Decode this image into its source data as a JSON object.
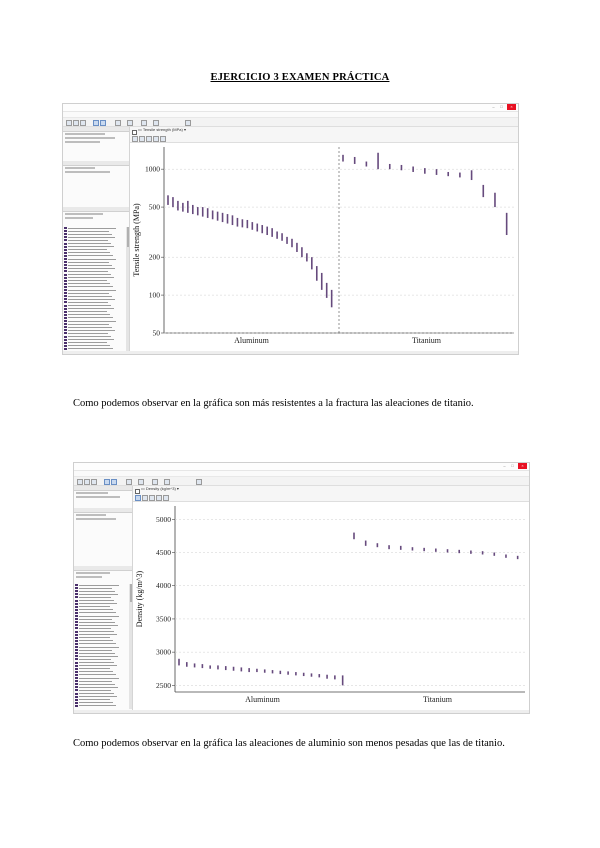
{
  "document": {
    "title": "EJERCICIO 3 EXAMEN PRÁCTICA",
    "paragraph_1": "Como podemos observar en la gráfica son más resistentes a la fractura las aleaciones de titanio.",
    "paragraph_2": "Como podemos observar en la gráfica las aleaciones de aluminio son menos pesadas que las de titanio."
  },
  "colors": {
    "mark": "#4b2a66",
    "window_close": "#e81123",
    "grid": "#cfcfcf"
  },
  "chart_data": [
    {
      "type": "scatter",
      "xlabel": "",
      "ylabel": "Tensile strength (MPa)",
      "y_scale": "log",
      "ylim": [
        50,
        1500
      ],
      "yticks": [
        "50",
        "100",
        "200",
        "500",
        "1000"
      ],
      "categories": [
        "Aluminum",
        "Titanium"
      ],
      "series": [
        {
          "category": "Aluminum",
          "ranges": [
            [
              520,
              620
            ],
            [
              500,
              600
            ],
            [
              470,
              560
            ],
            [
              460,
              540
            ],
            [
              450,
              560
            ],
            [
              440,
              520
            ],
            [
              430,
              500
            ],
            [
              420,
              500
            ],
            [
              410,
              490
            ],
            [
              400,
              470
            ],
            [
              390,
              460
            ],
            [
              380,
              450
            ],
            [
              370,
              440
            ],
            [
              360,
              430
            ],
            [
              350,
              410
            ],
            [
              345,
              400
            ],
            [
              340,
              395
            ],
            [
              330,
              380
            ],
            [
              320,
              370
            ],
            [
              310,
              360
            ],
            [
              300,
              350
            ],
            [
              290,
              340
            ],
            [
              280,
              320
            ],
            [
              270,
              310
            ],
            [
              255,
              290
            ],
            [
              240,
              280
            ],
            [
              220,
              260
            ],
            [
              200,
              240
            ],
            [
              185,
              215
            ],
            [
              160,
              200
            ],
            [
              130,
              170
            ],
            [
              110,
              150
            ],
            [
              95,
              125
            ],
            [
              80,
              110
            ]
          ]
        },
        {
          "category": "Titanium",
          "ranges": [
            [
              1150,
              1300
            ],
            [
              1100,
              1250
            ],
            [
              1050,
              1150
            ],
            [
              1000,
              1350
            ],
            [
              1000,
              1100
            ],
            [
              980,
              1080
            ],
            [
              950,
              1050
            ],
            [
              920,
              1020
            ],
            [
              900,
              1000
            ],
            [
              880,
              950
            ],
            [
              860,
              940
            ],
            [
              820,
              980
            ],
            [
              600,
              750
            ],
            [
              500,
              650
            ],
            [
              300,
              450
            ]
          ]
        }
      ],
      "divider_x": "between Aluminum and Titanium",
      "grid": true,
      "legend": "none"
    },
    {
      "type": "scatter",
      "xlabel": "",
      "ylabel": "Density (kg/m^3)",
      "ylim": [
        2400,
        5200
      ],
      "yticks": [
        "2500",
        "3000",
        "3500",
        "4000",
        "4500",
        "5000"
      ],
      "categories": [
        "Aluminum",
        "Titanium"
      ],
      "series": [
        {
          "category": "Aluminum",
          "ranges": [
            [
              2800,
              2900
            ],
            [
              2780,
              2850
            ],
            [
              2770,
              2830
            ],
            [
              2760,
              2820
            ],
            [
              2750,
              2800
            ],
            [
              2740,
              2800
            ],
            [
              2730,
              2790
            ],
            [
              2720,
              2780
            ],
            [
              2710,
              2770
            ],
            [
              2700,
              2760
            ],
            [
              2700,
              2750
            ],
            [
              2690,
              2740
            ],
            [
              2680,
              2730
            ],
            [
              2670,
              2720
            ],
            [
              2660,
              2710
            ],
            [
              2650,
              2700
            ],
            [
              2640,
              2690
            ],
            [
              2630,
              2680
            ],
            [
              2620,
              2670
            ],
            [
              2600,
              2660
            ],
            [
              2590,
              2650
            ],
            [
              2500,
              2650
            ]
          ]
        },
        {
          "category": "Titanium",
          "ranges": [
            [
              4700,
              4800
            ],
            [
              4600,
              4680
            ],
            [
              4580,
              4640
            ],
            [
              4550,
              4610
            ],
            [
              4540,
              4600
            ],
            [
              4530,
              4580
            ],
            [
              4520,
              4570
            ],
            [
              4510,
              4560
            ],
            [
              4500,
              4550
            ],
            [
              4490,
              4540
            ],
            [
              4480,
              4530
            ],
            [
              4470,
              4520
            ],
            [
              4450,
              4500
            ],
            [
              4420,
              4470
            ],
            [
              4400,
              4450
            ]
          ]
        }
      ],
      "grid": true,
      "legend": "none"
    }
  ]
}
